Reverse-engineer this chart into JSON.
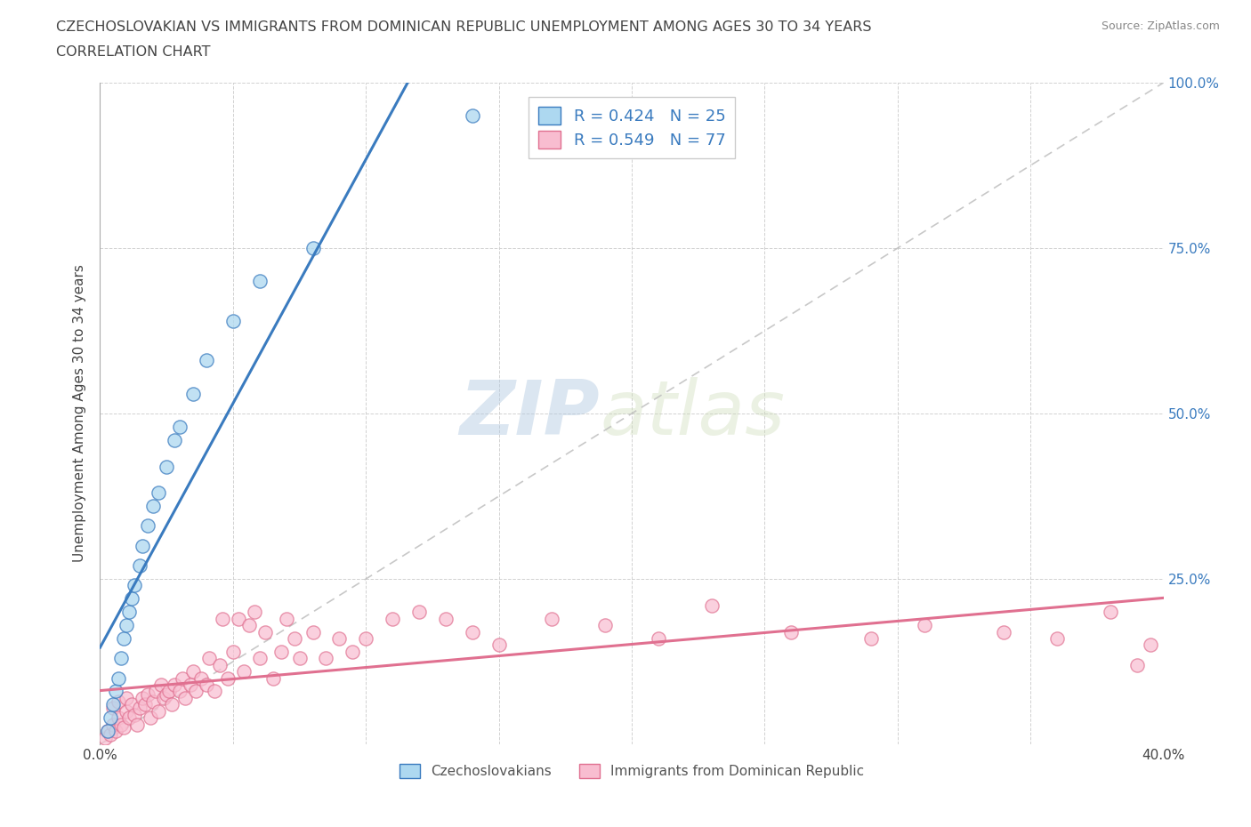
{
  "title_line1": "CZECHOSLOVAKIAN VS IMMIGRANTS FROM DOMINICAN REPUBLIC UNEMPLOYMENT AMONG AGES 30 TO 34 YEARS",
  "title_line2": "CORRELATION CHART",
  "source_text": "Source: ZipAtlas.com",
  "ylabel": "Unemployment Among Ages 30 to 34 years",
  "xlim": [
    0.0,
    0.4
  ],
  "ylim": [
    0.0,
    1.0
  ],
  "blue_R": 0.424,
  "blue_N": 25,
  "pink_R": 0.549,
  "pink_N": 77,
  "blue_color": "#ADD8F0",
  "pink_color": "#F8BDD0",
  "blue_line_color": "#3A7BBF",
  "pink_line_color": "#E07090",
  "diag_color": "#BBBBBB",
  "legend_label_blue": "Czechoslovakians",
  "legend_label_pink": "Immigrants from Dominican Republic",
  "watermark_zip": "ZIP",
  "watermark_atlas": "atlas",
  "blue_scatter_x": [
    0.003,
    0.004,
    0.005,
    0.006,
    0.007,
    0.008,
    0.009,
    0.01,
    0.011,
    0.012,
    0.013,
    0.015,
    0.016,
    0.018,
    0.02,
    0.022,
    0.025,
    0.028,
    0.03,
    0.035,
    0.04,
    0.05,
    0.06,
    0.08,
    0.14
  ],
  "blue_scatter_y": [
    0.02,
    0.04,
    0.06,
    0.08,
    0.1,
    0.13,
    0.16,
    0.18,
    0.2,
    0.22,
    0.24,
    0.27,
    0.3,
    0.33,
    0.36,
    0.38,
    0.42,
    0.46,
    0.48,
    0.53,
    0.58,
    0.64,
    0.7,
    0.75,
    0.95
  ],
  "pink_scatter_x": [
    0.002,
    0.003,
    0.004,
    0.005,
    0.005,
    0.006,
    0.007,
    0.007,
    0.008,
    0.009,
    0.01,
    0.01,
    0.011,
    0.012,
    0.013,
    0.014,
    0.015,
    0.016,
    0.017,
    0.018,
    0.019,
    0.02,
    0.021,
    0.022,
    0.023,
    0.024,
    0.025,
    0.026,
    0.027,
    0.028,
    0.03,
    0.031,
    0.032,
    0.034,
    0.035,
    0.036,
    0.038,
    0.04,
    0.041,
    0.043,
    0.045,
    0.046,
    0.048,
    0.05,
    0.052,
    0.054,
    0.056,
    0.058,
    0.06,
    0.062,
    0.065,
    0.068,
    0.07,
    0.073,
    0.075,
    0.08,
    0.085,
    0.09,
    0.095,
    0.1,
    0.11,
    0.12,
    0.13,
    0.14,
    0.15,
    0.17,
    0.19,
    0.21,
    0.23,
    0.26,
    0.29,
    0.31,
    0.34,
    0.36,
    0.38,
    0.39,
    0.395
  ],
  "pink_scatter_y": [
    0.01,
    0.02,
    0.015,
    0.03,
    0.055,
    0.02,
    0.04,
    0.065,
    0.03,
    0.025,
    0.05,
    0.07,
    0.04,
    0.06,
    0.045,
    0.03,
    0.055,
    0.07,
    0.06,
    0.075,
    0.04,
    0.065,
    0.08,
    0.05,
    0.09,
    0.07,
    0.075,
    0.08,
    0.06,
    0.09,
    0.08,
    0.1,
    0.07,
    0.09,
    0.11,
    0.08,
    0.1,
    0.09,
    0.13,
    0.08,
    0.12,
    0.19,
    0.1,
    0.14,
    0.19,
    0.11,
    0.18,
    0.2,
    0.13,
    0.17,
    0.1,
    0.14,
    0.19,
    0.16,
    0.13,
    0.17,
    0.13,
    0.16,
    0.14,
    0.16,
    0.19,
    0.2,
    0.19,
    0.17,
    0.15,
    0.19,
    0.18,
    0.16,
    0.21,
    0.17,
    0.16,
    0.18,
    0.17,
    0.16,
    0.2,
    0.12,
    0.15
  ]
}
